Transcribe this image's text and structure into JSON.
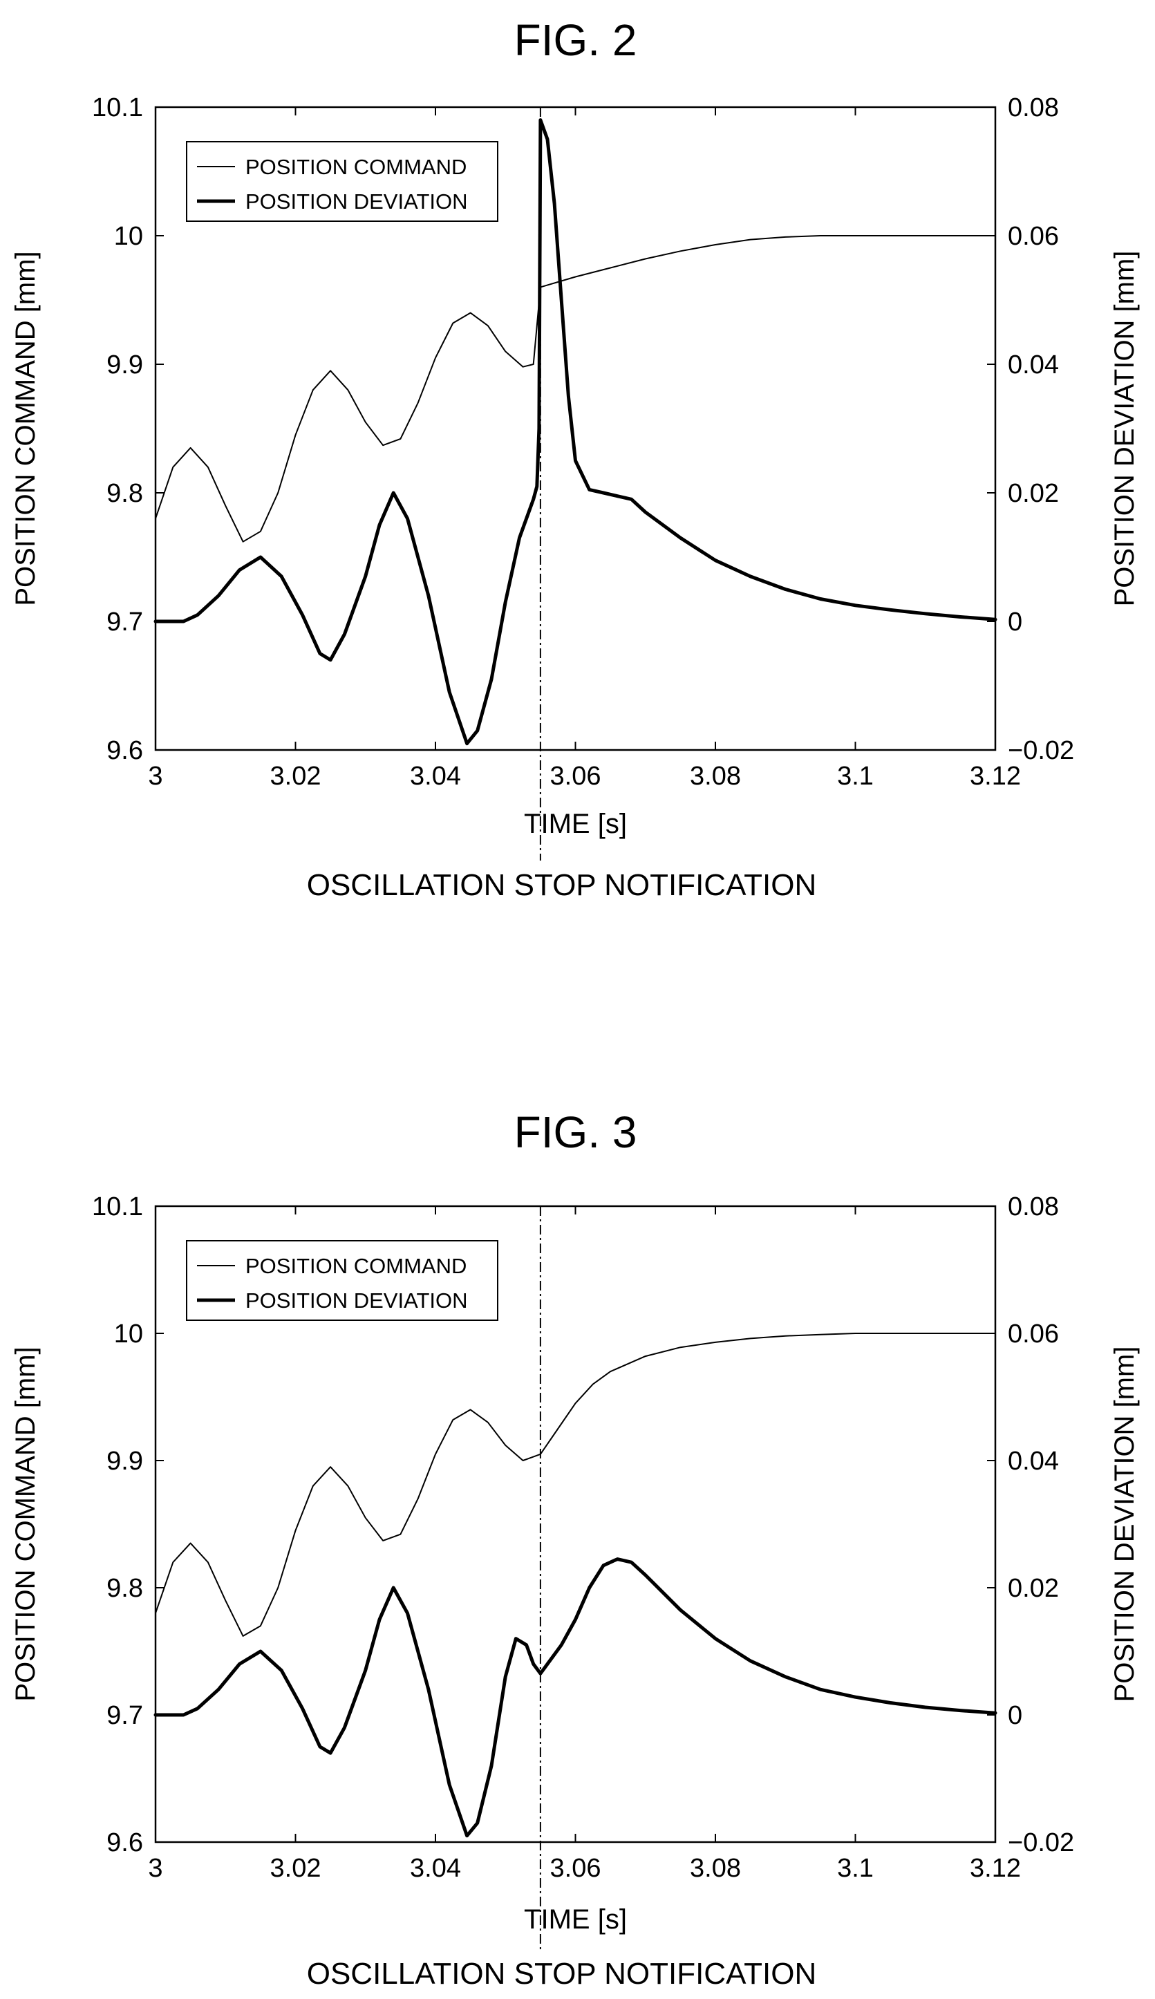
{
  "chart_data": [
    {
      "type": "line",
      "title": "FIG. 2",
      "xlabel": "TIME [s]",
      "ylabel": "POSITION COMMAND [mm]",
      "y2label": "POSITION DEVIATION [mm]",
      "annotation": "OSCILLATION STOP NOTIFICATION",
      "xlim": [
        3,
        3.12
      ],
      "ylim": [
        9.6,
        10.1
      ],
      "y2lim": [
        -0.02,
        0.08
      ],
      "xticks": [
        "3",
        "3.02",
        "3.04",
        "3.06",
        "3.08",
        "3.1",
        "3.12"
      ],
      "yticks": [
        "9.6",
        "9.7",
        "9.8",
        "9.9",
        "10",
        "10.1"
      ],
      "y2ticks": [
        "−0.02",
        "0",
        "0.02",
        "0.04",
        "0.06",
        "0.08"
      ],
      "grid": false,
      "legend_position": "top-left",
      "event_x": 3.055,
      "series": [
        {
          "name": "POSITION COMMAND",
          "axis": "left",
          "style": "thin",
          "points": [
            [
              3,
              9.78
            ],
            [
              3.0025,
              9.82
            ],
            [
              3.005,
              9.835
            ],
            [
              3.0075,
              9.82
            ],
            [
              3.01,
              9.79
            ],
            [
              3.0125,
              9.762
            ],
            [
              3.015,
              9.77
            ],
            [
              3.0175,
              9.8
            ],
            [
              3.02,
              9.845
            ],
            [
              3.0225,
              9.88
            ],
            [
              3.025,
              9.895
            ],
            [
              3.0275,
              9.88
            ],
            [
              3.03,
              9.855
            ],
            [
              3.0325,
              9.837
            ],
            [
              3.035,
              9.842
            ],
            [
              3.0375,
              9.87
            ],
            [
              3.04,
              9.905
            ],
            [
              3.0425,
              9.932
            ],
            [
              3.045,
              9.94
            ],
            [
              3.0475,
              9.93
            ],
            [
              3.05,
              9.91
            ],
            [
              3.0525,
              9.898
            ],
            [
              3.054,
              9.9
            ],
            [
              3.055,
              9.96
            ],
            [
              3.06,
              9.968
            ],
            [
              3.065,
              9.975
            ],
            [
              3.07,
              9.982
            ],
            [
              3.075,
              9.988
            ],
            [
              3.08,
              9.993
            ],
            [
              3.085,
              9.997
            ],
            [
              3.09,
              9.999
            ],
            [
              3.095,
              10
            ],
            [
              3.1,
              10
            ],
            [
              3.11,
              10
            ],
            [
              3.12,
              10
            ]
          ]
        },
        {
          "name": "POSITION DEVIATION",
          "axis": "right",
          "style": "thick",
          "points": [
            [
              3,
              0
            ],
            [
              3.002,
              0
            ],
            [
              3.004,
              0
            ],
            [
              3.006,
              0.001
            ],
            [
              3.009,
              0.004
            ],
            [
              3.012,
              0.008
            ],
            [
              3.015,
              0.01
            ],
            [
              3.018,
              0.007
            ],
            [
              3.021,
              0.001
            ],
            [
              3.0235,
              -0.005
            ],
            [
              3.025,
              -0.006
            ],
            [
              3.027,
              -0.002
            ],
            [
              3.03,
              0.007
            ],
            [
              3.032,
              0.015
            ],
            [
              3.034,
              0.02
            ],
            [
              3.036,
              0.016
            ],
            [
              3.039,
              0.004
            ],
            [
              3.042,
              -0.011
            ],
            [
              3.0445,
              -0.019
            ],
            [
              3.046,
              -0.017
            ],
            [
              3.048,
              -0.009
            ],
            [
              3.05,
              0.003
            ],
            [
              3.052,
              0.013
            ],
            [
              3.054,
              0.019
            ],
            [
              3.0545,
              0.021
            ],
            [
              3.0548,
              0.03
            ],
            [
              3.055,
              0.078
            ],
            [
              3.056,
              0.075
            ],
            [
              3.057,
              0.065
            ],
            [
              3.058,
              0.05
            ],
            [
              3.059,
              0.035
            ],
            [
              3.06,
              0.025
            ],
            [
              3.062,
              0.0205
            ],
            [
              3.064,
              0.02
            ],
            [
              3.066,
              0.0195
            ],
            [
              3.068,
              0.019
            ],
            [
              3.07,
              0.017
            ],
            [
              3.075,
              0.013
            ],
            [
              3.08,
              0.0095
            ],
            [
              3.085,
              0.007
            ],
            [
              3.09,
              0.005
            ],
            [
              3.095,
              0.0035
            ],
            [
              3.1,
              0.0025
            ],
            [
              3.105,
              0.0018
            ],
            [
              3.11,
              0.0012
            ],
            [
              3.115,
              0.0007
            ],
            [
              3.12,
              0.0003
            ]
          ]
        }
      ]
    },
    {
      "type": "line",
      "title": "FIG. 3",
      "xlabel": "TIME [s]",
      "ylabel": "POSITION COMMAND [mm]",
      "y2label": "POSITION DEVIATION [mm]",
      "annotation": "OSCILLATION STOP NOTIFICATION",
      "xlim": [
        3,
        3.12
      ],
      "ylim": [
        9.6,
        10.1
      ],
      "y2lim": [
        -0.02,
        0.08
      ],
      "xticks": [
        "3",
        "3.02",
        "3.04",
        "3.06",
        "3.08",
        "3.1",
        "3.12"
      ],
      "yticks": [
        "9.6",
        "9.7",
        "9.8",
        "9.9",
        "10",
        "10.1"
      ],
      "y2ticks": [
        "−0.02",
        "0",
        "0.02",
        "0.04",
        "0.06",
        "0.08"
      ],
      "grid": false,
      "legend_position": "top-left",
      "event_x": 3.055,
      "series": [
        {
          "name": "POSITION COMMAND",
          "axis": "left",
          "style": "thin",
          "points": [
            [
              3,
              9.78
            ],
            [
              3.0025,
              9.82
            ],
            [
              3.005,
              9.835
            ],
            [
              3.0075,
              9.82
            ],
            [
              3.01,
              9.79
            ],
            [
              3.0125,
              9.762
            ],
            [
              3.015,
              9.77
            ],
            [
              3.0175,
              9.8
            ],
            [
              3.02,
              9.845
            ],
            [
              3.0225,
              9.88
            ],
            [
              3.025,
              9.895
            ],
            [
              3.0275,
              9.88
            ],
            [
              3.03,
              9.855
            ],
            [
              3.0325,
              9.837
            ],
            [
              3.035,
              9.842
            ],
            [
              3.0375,
              9.87
            ],
            [
              3.04,
              9.905
            ],
            [
              3.0425,
              9.932
            ],
            [
              3.045,
              9.94
            ],
            [
              3.0475,
              9.93
            ],
            [
              3.05,
              9.912
            ],
            [
              3.0525,
              9.9
            ],
            [
              3.055,
              9.905
            ],
            [
              3.0575,
              9.925
            ],
            [
              3.06,
              9.945
            ],
            [
              3.0625,
              9.96
            ],
            [
              3.065,
              9.97
            ],
            [
              3.07,
              9.982
            ],
            [
              3.075,
              9.989
            ],
            [
              3.08,
              9.993
            ],
            [
              3.085,
              9.996
            ],
            [
              3.09,
              9.998
            ],
            [
              3.095,
              9.999
            ],
            [
              3.1,
              10
            ],
            [
              3.11,
              10
            ],
            [
              3.12,
              10
            ]
          ]
        },
        {
          "name": "POSITION DEVIATION",
          "axis": "right",
          "style": "thick",
          "points": [
            [
              3,
              0
            ],
            [
              3.002,
              0
            ],
            [
              3.004,
              0
            ],
            [
              3.006,
              0.001
            ],
            [
              3.009,
              0.004
            ],
            [
              3.012,
              0.008
            ],
            [
              3.015,
              0.01
            ],
            [
              3.018,
              0.007
            ],
            [
              3.021,
              0.001
            ],
            [
              3.0235,
              -0.005
            ],
            [
              3.025,
              -0.006
            ],
            [
              3.027,
              -0.002
            ],
            [
              3.03,
              0.007
            ],
            [
              3.032,
              0.015
            ],
            [
              3.034,
              0.02
            ],
            [
              3.036,
              0.016
            ],
            [
              3.039,
              0.004
            ],
            [
              3.042,
              -0.011
            ],
            [
              3.0445,
              -0.019
            ],
            [
              3.046,
              -0.017
            ],
            [
              3.048,
              -0.008
            ],
            [
              3.05,
              0.006
            ],
            [
              3.0515,
              0.012
            ],
            [
              3.053,
              0.011
            ],
            [
              3.054,
              0.008
            ],
            [
              3.055,
              0.0065
            ],
            [
              3.056,
              0.008
            ],
            [
              3.058,
              0.011
            ],
            [
              3.06,
              0.015
            ],
            [
              3.062,
              0.02
            ],
            [
              3.064,
              0.0235
            ],
            [
              3.066,
              0.0245
            ],
            [
              3.068,
              0.024
            ],
            [
              3.07,
              0.022
            ],
            [
              3.075,
              0.0165
            ],
            [
              3.08,
              0.012
            ],
            [
              3.085,
              0.0085
            ],
            [
              3.09,
              0.006
            ],
            [
              3.095,
              0.004
            ],
            [
              3.1,
              0.0028
            ],
            [
              3.105,
              0.0019
            ],
            [
              3.11,
              0.0012
            ],
            [
              3.115,
              0.0007
            ],
            [
              3.12,
              0.0003
            ]
          ]
        }
      ]
    }
  ]
}
